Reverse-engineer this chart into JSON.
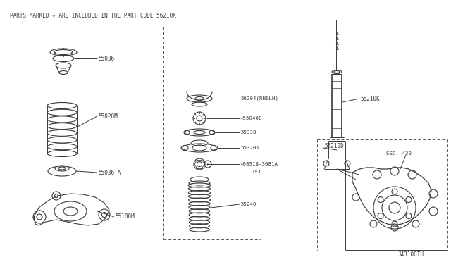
{
  "background_color": "#ffffff",
  "header_text": "PARTS MARKED ✳ ARE INCLUDED IN THE PART CODE 56210K",
  "footer_text": "J43100TH",
  "line_color": "#3a3a3a",
  "text_color": "#3a3a3a",
  "dash_color": "#555555",
  "fig_w": 6.4,
  "fig_h": 3.72,
  "dpi": 100,
  "xlim": [
    0,
    640
  ],
  "ylim": [
    0,
    372
  ]
}
